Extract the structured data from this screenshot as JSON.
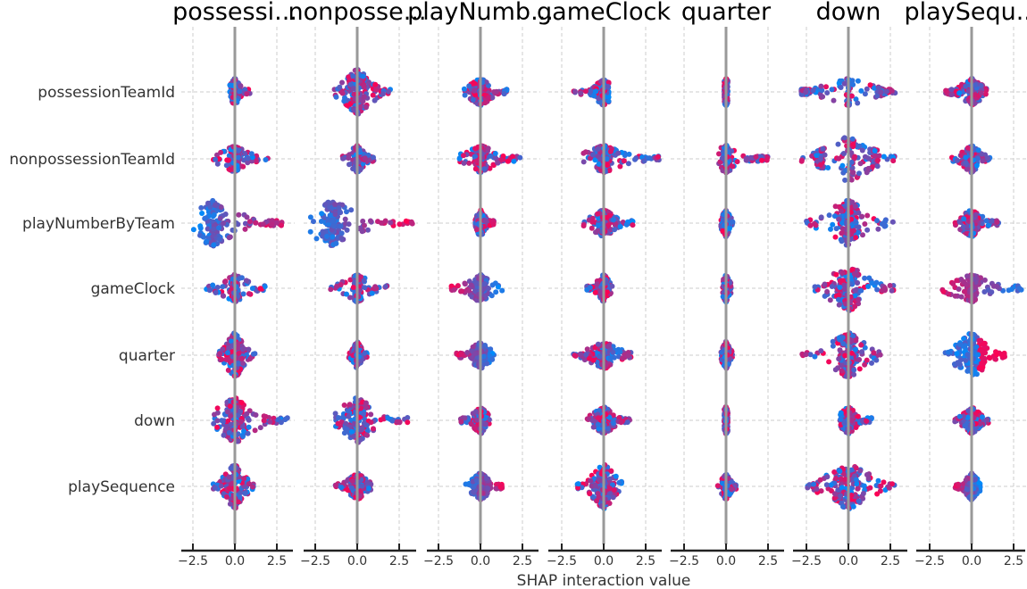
{
  "chart_data": {
    "type": "scatter",
    "subtype": "shap-interaction-beeswarm-matrix",
    "xlabel": "SHAP interaction value",
    "features": [
      "possessionTeamId",
      "nonpossessionTeamId",
      "playNumberByTeam",
      "gameClock",
      "quarter",
      "down",
      "playSequence"
    ],
    "column_titles": [
      "possessi...",
      "nonposse...",
      "playNumb...",
      "gameClock",
      "quarter",
      "down",
      "playSequ..."
    ],
    "xlim": [
      -2.5,
      2.5
    ],
    "xticks": [
      -2.5,
      0.0,
      2.5
    ],
    "xtick_labels": [
      "−2.5",
      "0.0",
      "2.5"
    ],
    "grid": true,
    "color_low": "#008bfb",
    "color_high": "#ff0052",
    "zero_line_color": "#999999",
    "cells": [
      [
        {
          "spread": [
            -0.2,
            0.2
          ],
          "extent": [
            -0.3,
            0.9
          ],
          "color": "mixed"
        },
        {
          "spread": [
            -0.6,
            0.6
          ],
          "extent": [
            -1.4,
            2.0
          ],
          "color": "mixed"
        },
        {
          "spread": [
            -0.4,
            0.4
          ],
          "extent": [
            -1.0,
            1.6
          ],
          "color": "mixed"
        },
        {
          "spread": [
            -0.3,
            0.3
          ],
          "extent": [
            -1.8,
            0.3
          ],
          "color": "mixed"
        },
        {
          "spread": [
            -0.1,
            0.1
          ],
          "extent": [
            -0.1,
            0.1
          ],
          "color": "mixed"
        },
        {
          "spread": [
            -0.1,
            0.1
          ],
          "extent": [
            -2.8,
            2.8
          ],
          "color": "mixed",
          "bimodal": [
            -2.6,
            2.1
          ]
        },
        {
          "spread": [
            -0.4,
            0.4
          ],
          "extent": [
            -1.6,
            0.9
          ],
          "color": "mixed"
        }
      ],
      [
        {
          "spread": [
            -0.3,
            0.3
          ],
          "extent": [
            -1.3,
            2.0
          ],
          "color": "mixed"
        },
        {
          "spread": [
            -0.2,
            0.2
          ],
          "extent": [
            -0.9,
            1.0
          ],
          "color": "mixed"
        },
        {
          "spread": [
            -0.3,
            0.3
          ],
          "extent": [
            -1.3,
            2.4
          ],
          "color": "mixed"
        },
        {
          "spread": [
            -0.4,
            0.4
          ],
          "extent": [
            -1.2,
            3.3
          ],
          "color": "mixed"
        },
        {
          "spread": [
            -0.2,
            0.2
          ],
          "extent": [
            -0.5,
            2.5
          ],
          "color": "mixed"
        },
        {
          "spread": [
            -0.6,
            0.6
          ],
          "extent": [
            -2.8,
            2.8
          ],
          "color": "mixed",
          "bimodal": [
            -1.7,
            1.5
          ]
        },
        {
          "spread": [
            -0.3,
            0.3
          ],
          "extent": [
            -1.2,
            1.1
          ],
          "color": "mixed"
        }
      ],
      [
        {
          "spread": [
            -1.8,
            -0.8
          ],
          "extent": [
            -2.5,
            3.3
          ],
          "color": "mixed-high-right"
        },
        {
          "spread": [
            -2.0,
            -1.0
          ],
          "extent": [
            -2.8,
            3.3
          ],
          "color": "mixed-high-right"
        },
        {
          "spread": [
            -0.3,
            0.3
          ],
          "extent": [
            -0.3,
            0.8
          ],
          "color": "mixed"
        },
        {
          "spread": [
            -0.4,
            0.4
          ],
          "extent": [
            -1.2,
            1.8
          ],
          "color": "mixed"
        },
        {
          "spread": [
            -0.2,
            0.2
          ],
          "extent": [
            -0.3,
            0.4
          ],
          "color": "mixed"
        },
        {
          "spread": [
            -0.6,
            0.6
          ],
          "extent": [
            -2.5,
            3.0
          ],
          "color": "mixed"
        },
        {
          "spread": [
            -0.4,
            0.4
          ],
          "extent": [
            -1.0,
            1.6
          ],
          "color": "mixed"
        }
      ],
      [
        {
          "spread": [
            -0.2,
            0.2
          ],
          "extent": [
            -1.7,
            1.8
          ],
          "color": "mixed"
        },
        {
          "spread": [
            -0.2,
            0.2
          ],
          "extent": [
            -1.6,
            1.8
          ],
          "color": "mixed"
        },
        {
          "spread": [
            -0.3,
            0.3
          ],
          "extent": [
            -1.8,
            1.3
          ],
          "color": "mixed-high-left"
        },
        {
          "spread": [
            -0.3,
            0.3
          ],
          "extent": [
            -1.0,
            0.6
          ],
          "color": "mixed"
        },
        {
          "spread": [
            -0.1,
            0.1
          ],
          "extent": [
            -0.2,
            0.3
          ],
          "color": "mixed"
        },
        {
          "spread": [
            -0.6,
            0.6
          ],
          "extent": [
            -2.0,
            2.8
          ],
          "color": "mixed"
        },
        {
          "spread": [
            -0.3,
            0.3
          ],
          "extent": [
            -1.8,
            3.0
          ],
          "color": "mixed-blue-right"
        }
      ],
      [
        {
          "spread": [
            -0.5,
            0.5
          ],
          "extent": [
            -1.0,
            1.2
          ],
          "color": "mixed"
        },
        {
          "spread": [
            -0.3,
            0.3
          ],
          "extent": [
            -0.5,
            0.6
          ],
          "color": "mixed"
        },
        {
          "spread": [
            -0.4,
            0.4
          ],
          "extent": [
            -1.5,
            0.8
          ],
          "color": "mixed-high-left"
        },
        {
          "spread": [
            -0.4,
            0.4
          ],
          "extent": [
            -1.8,
            1.7
          ],
          "color": "mixed"
        },
        {
          "spread": [
            -0.2,
            0.2
          ],
          "extent": [
            -0.3,
            0.4
          ],
          "color": "mixed"
        },
        {
          "spread": [
            -0.5,
            0.5
          ],
          "extent": [
            -2.8,
            2.0
          ],
          "color": "mixed"
        },
        {
          "spread": [
            -0.7,
            0.7
          ],
          "extent": [
            -1.6,
            2.0
          ],
          "color": "blue-center-high-right"
        }
      ],
      [
        {
          "spread": [
            -0.6,
            0.6
          ],
          "extent": [
            -1.3,
            3.3
          ],
          "color": "mixed"
        },
        {
          "spread": [
            -0.6,
            0.6
          ],
          "extent": [
            -1.3,
            3.1
          ],
          "color": "mixed"
        },
        {
          "spread": [
            -0.3,
            0.3
          ],
          "extent": [
            -1.2,
            0.6
          ],
          "color": "mixed"
        },
        {
          "spread": [
            -0.4,
            0.4
          ],
          "extent": [
            -1.0,
            1.6
          ],
          "color": "mixed"
        },
        {
          "spread": [
            -0.1,
            0.1
          ],
          "extent": [
            -0.1,
            0.1
          ],
          "color": "mixed"
        },
        {
          "spread": [
            -0.3,
            0.3
          ],
          "extent": [
            -0.5,
            1.4
          ],
          "color": "mixed"
        },
        {
          "spread": [
            -0.4,
            0.4
          ],
          "extent": [
            -1.0,
            1.0
          ],
          "color": "mixed"
        }
      ],
      [
        {
          "spread": [
            -0.7,
            0.7
          ],
          "extent": [
            -1.3,
            1.1
          ],
          "color": "mixed"
        },
        {
          "spread": [
            -0.4,
            0.4
          ],
          "extent": [
            -1.3,
            0.9
          ],
          "color": "mixed"
        },
        {
          "spread": [
            -0.4,
            0.4
          ],
          "extent": [
            -0.9,
            1.3
          ],
          "color": "mixed-high-right"
        },
        {
          "spread": [
            -0.5,
            0.5
          ],
          "extent": [
            -1.6,
            1.1
          ],
          "color": "mixed"
        },
        {
          "spread": [
            -0.2,
            0.2
          ],
          "extent": [
            -0.5,
            0.6
          ],
          "color": "mixed"
        },
        {
          "spread": [
            -0.8,
            0.8
          ],
          "extent": [
            -2.5,
            2.8
          ],
          "color": "mixed"
        },
        {
          "spread": [
            -0.4,
            0.4
          ],
          "extent": [
            -1.0,
            0.5
          ],
          "color": "mixed-high-left"
        }
      ]
    ]
  }
}
